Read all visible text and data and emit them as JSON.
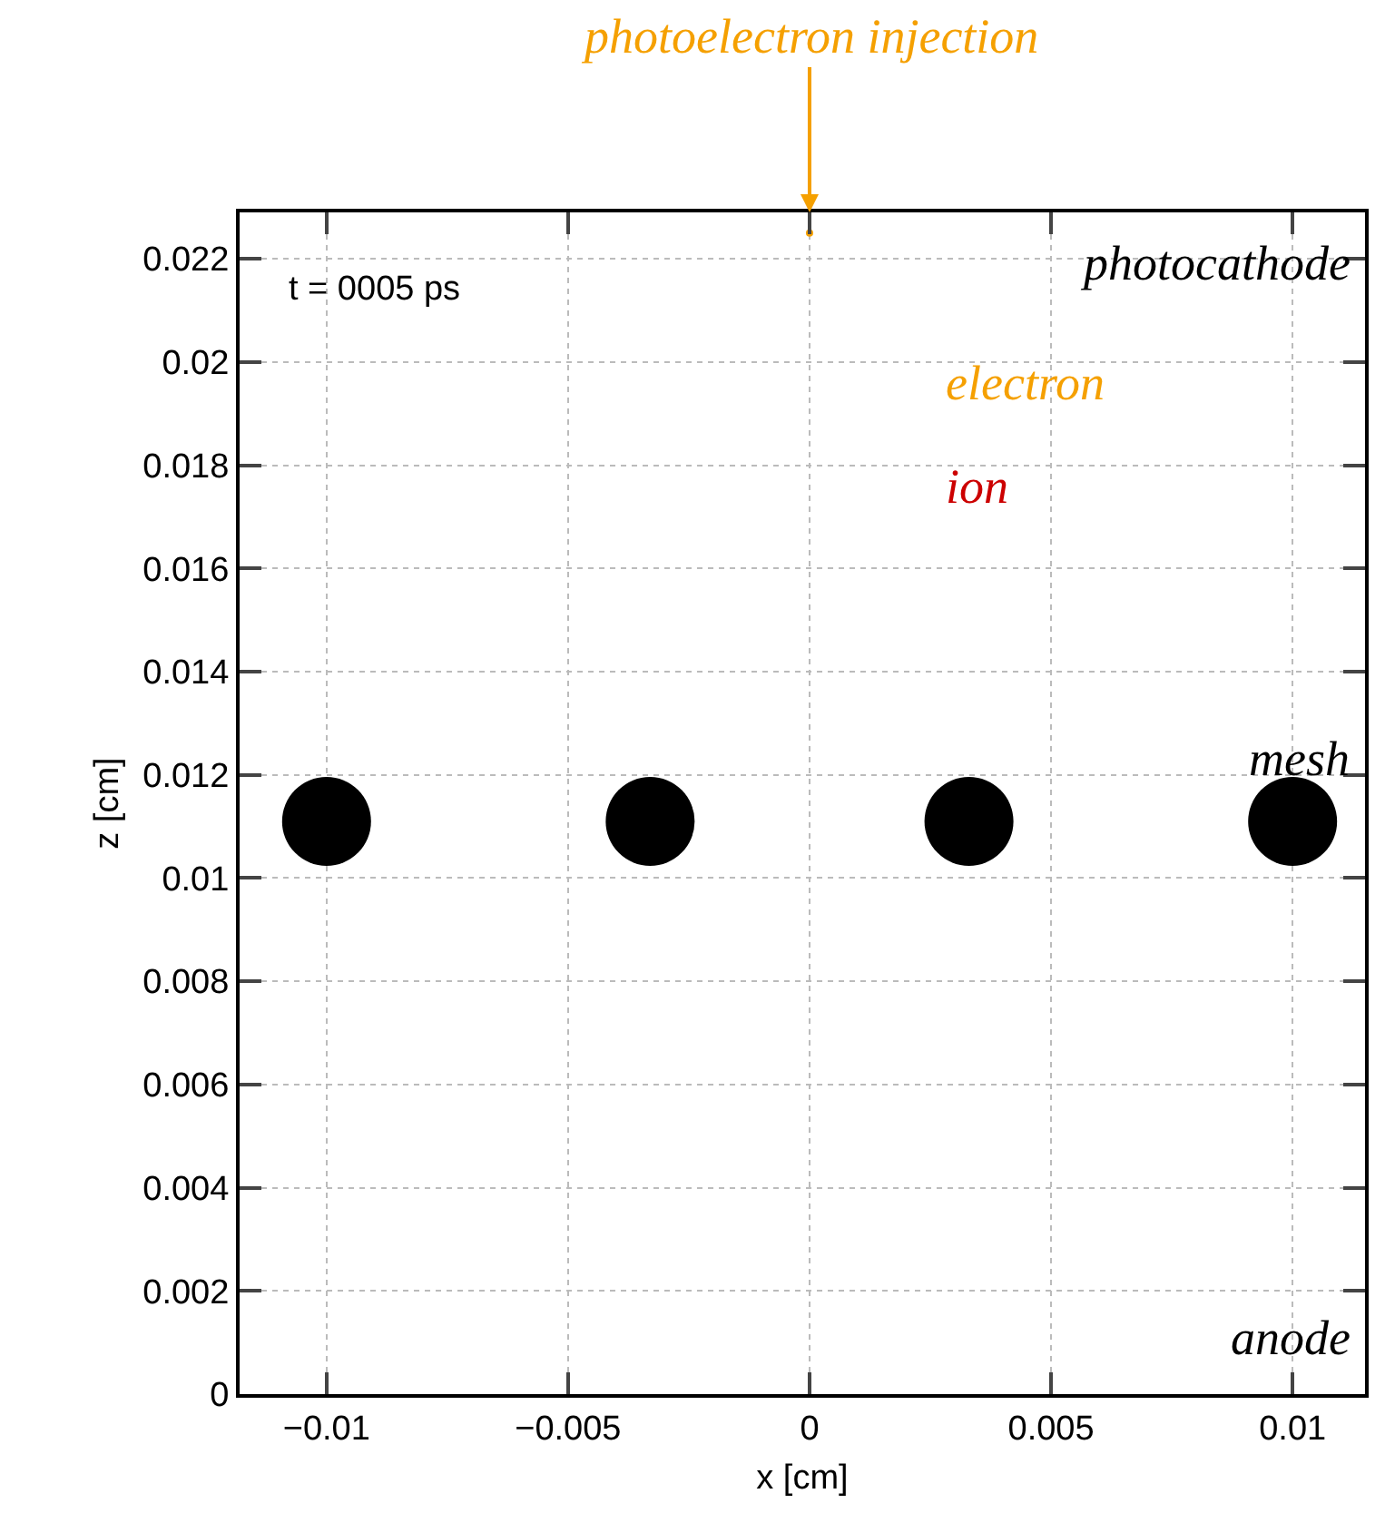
{
  "chart_data": {
    "type": "scatter",
    "xlabel": "x [cm]",
    "ylabel": "z [cm]",
    "xlim": [
      -0.0118,
      0.0115
    ],
    "ylim": [
      0,
      0.0229
    ],
    "xticks": [
      {
        "value": -0.01,
        "label": "−0.01"
      },
      {
        "value": -0.005,
        "label": "−0.005"
      },
      0,
      0.005,
      0.01
    ],
    "yticks": [
      0,
      0.002,
      0.004,
      0.006,
      0.008,
      0.01,
      0.012,
      0.014,
      0.016,
      0.018,
      0.02,
      0.022
    ],
    "grid": true,
    "legend": "top right",
    "marker": "circle",
    "series": [
      {
        "name": "electron",
        "color": "#f5a000",
        "x": [
          0
        ],
        "values": [
          0.0225
        ]
      },
      {
        "name": "ion",
        "color": "#cc0000"
      },
      {
        "name": "mesh",
        "color": "#000000",
        "x": [
          -0.01,
          -0.0033,
          0.0033,
          0.01
        ],
        "values": [
          0.0111,
          0.0111,
          0.0111,
          0.0111
        ]
      }
    ],
    "annotations": [
      "photoelectron injection",
      "t = 0005 ps",
      "photocathode",
      "anode"
    ]
  }
}
